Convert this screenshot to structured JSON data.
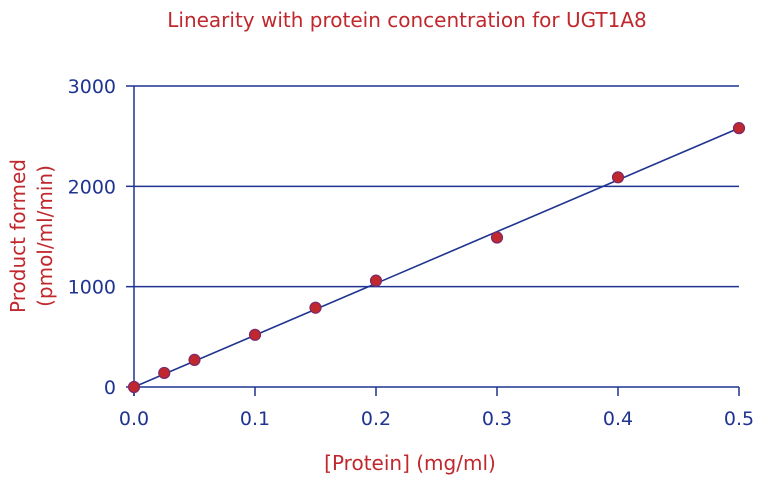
{
  "chart_data": {
    "type": "scatter",
    "title": "Linearity with protein concentration for UGT1A8",
    "xlabel": "[Protein] (mg/ml)",
    "ylabel_lines": [
      "Product formed",
      "(pmol/ml/min)"
    ],
    "xlim": [
      0,
      0.5
    ],
    "ylim": [
      0,
      3000
    ],
    "x_ticks": [
      0.0,
      0.1,
      0.2,
      0.3,
      0.4,
      0.5
    ],
    "x_tick_labels": [
      "0.0",
      "0.1",
      "0.2",
      "0.3",
      "0.4",
      "0.5"
    ],
    "y_ticks": [
      0,
      1000,
      2000,
      3000
    ],
    "y_tick_labels": [
      "0",
      "1000",
      "2000",
      "3000"
    ],
    "grid": "horizontal",
    "points": [
      {
        "x": 0.0,
        "y": 0
      },
      {
        "x": 0.025,
        "y": 140
      },
      {
        "x": 0.05,
        "y": 270
      },
      {
        "x": 0.1,
        "y": 520
      },
      {
        "x": 0.15,
        "y": 790
      },
      {
        "x": 0.2,
        "y": 1060
      },
      {
        "x": 0.3,
        "y": 1490
      },
      {
        "x": 0.4,
        "y": 2090
      },
      {
        "x": 0.5,
        "y": 2580
      }
    ],
    "fit_line": {
      "x": [
        0.0,
        0.5
      ],
      "y": [
        0,
        2580
      ]
    },
    "colors": {
      "title": "#c0282d",
      "axis_label": "#c0282d",
      "tick_label": "#1f3391",
      "grid": "#1f3391",
      "line": "#1f3391",
      "point_fill": "#c0282d",
      "point_stroke": "#7a2a6a"
    }
  }
}
